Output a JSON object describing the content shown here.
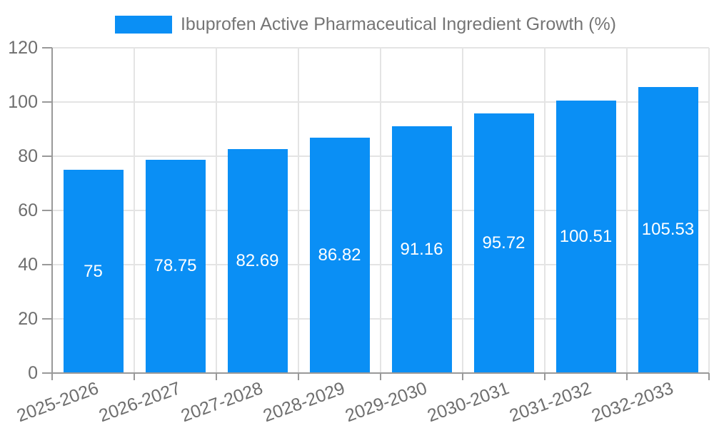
{
  "chart_data": {
    "type": "bar",
    "title": "Ibuprofen Active Pharmaceutical Ingredient Growth (%)",
    "legend": {
      "label": "Ibuprofen Active Pharmaceutical Ingredient Growth (%)",
      "position": "top-center"
    },
    "categories": [
      "2025-2026",
      "2026-2027",
      "2027-2028",
      "2028-2029",
      "2029-2030",
      "2030-2031",
      "2031-2032",
      "2032-2033"
    ],
    "values": [
      75,
      78.75,
      82.69,
      86.82,
      91.16,
      95.72,
      100.51,
      105.53
    ],
    "bar_labels": [
      "75",
      "78.75",
      "82.69",
      "86.82",
      "91.16",
      "95.72",
      "100.51",
      "105.53"
    ],
    "bar_label_position": "inside-center",
    "xlabel": "",
    "ylabel": "",
    "ylim": [
      0,
      120
    ],
    "yticks": [
      0,
      20,
      40,
      60,
      80,
      100,
      120
    ],
    "grid": "horizontal and vertical gridlines",
    "colors": {
      "bar": "#0A8FF5",
      "axis_line": "#999999",
      "gridline": "#E4E4E4",
      "axis_label_text": "#6E6E6E",
      "legend_text": "#757575",
      "bar_label_text": "#FFFFFF",
      "background": "#FFFFFF"
    }
  }
}
